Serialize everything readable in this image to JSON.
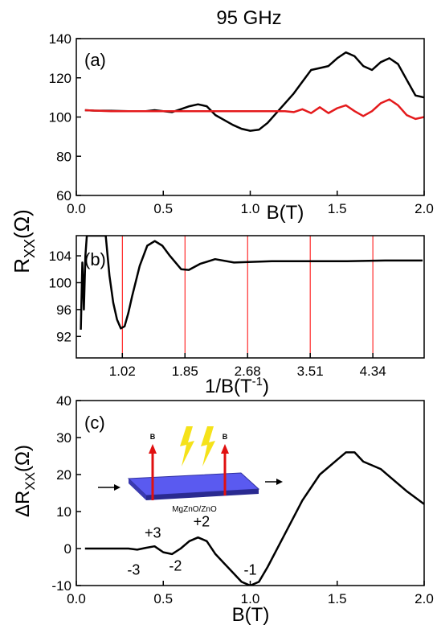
{
  "title": "95 GHz",
  "y_label": {
    "main": "R",
    "sub": "XX",
    "unit": "(Ω)"
  },
  "chart_data": [
    {
      "type": "line",
      "panel_label": "(a)",
      "x_label": "B(T)",
      "xlim": [
        0,
        2
      ],
      "ylim": [
        60,
        140
      ],
      "xticks": [
        {
          "value": 0,
          "label": "0.0"
        },
        0.5,
        {
          "value": 1,
          "label": "1.0"
        },
        1.5,
        {
          "value": 2,
          "label": "2.0"
        }
      ],
      "yticks": [
        60,
        80,
        100,
        120,
        140
      ],
      "x": [
        0.05,
        0.1,
        0.2,
        0.3,
        0.4,
        0.45,
        0.5,
        0.55,
        0.6,
        0.65,
        0.7,
        0.75,
        0.8,
        0.85,
        0.9,
        0.95,
        1.0,
        1.05,
        1.1,
        1.15,
        1.2,
        1.25,
        1.3,
        1.35,
        1.4,
        1.45,
        1.5,
        1.55,
        1.6,
        1.65,
        1.7,
        1.75,
        1.8,
        1.85,
        1.9,
        1.95,
        2.0
      ],
      "series": [
        {
          "color": "#000000",
          "values": [
            103.5,
            103.3,
            103.2,
            103,
            103,
            103.5,
            103,
            102.5,
            104,
            105.5,
            106.5,
            105.5,
            101,
            98.5,
            96,
            94,
            93,
            93.5,
            97,
            102,
            107,
            112,
            118,
            124,
            125,
            126,
            130,
            133,
            131,
            126,
            124,
            128,
            130,
            127,
            119,
            111,
            110
          ]
        },
        {
          "color": "#e41a1c",
          "values": [
            103.5,
            103.3,
            103,
            103,
            103,
            103,
            103,
            103,
            103,
            103,
            103,
            103,
            103,
            103,
            103,
            103,
            103,
            103,
            103,
            103,
            103,
            102.5,
            104,
            102,
            105,
            102,
            104.5,
            106,
            103,
            100.5,
            103,
            107,
            109,
            106,
            101,
            99,
            100
          ]
        }
      ]
    },
    {
      "type": "line",
      "panel_label": "(b)",
      "x_label": {
        "main": "1/B(T",
        "sup": "-1",
        "end": ")"
      },
      "xlim": [
        0.41,
        5.02
      ],
      "ylim": [
        88.8,
        107
      ],
      "xticks": [
        1.02,
        1.85,
        2.68,
        3.51,
        4.34
      ],
      "yticks": [
        92,
        96,
        100,
        104
      ],
      "grid": true,
      "grid_color": "#ff0000",
      "x": [
        0.47,
        0.49,
        0.5,
        0.51,
        0.53,
        0.55,
        0.8,
        0.85,
        0.9,
        0.95,
        1.0,
        1.05,
        1.1,
        1.15,
        1.25,
        1.35,
        1.45,
        1.55,
        1.65,
        1.8,
        1.9,
        2.05,
        2.25,
        2.5,
        3.0,
        3.5,
        4.0,
        4.5,
        5.0
      ],
      "series": [
        {
          "color": "#000000",
          "values": [
            93,
            103,
            100,
            96,
            104,
            107,
            107,
            101,
            97,
            94.5,
            93.2,
            93.5,
            95.5,
            98,
            102.5,
            105.5,
            106.2,
            105.5,
            104,
            102,
            101.9,
            102.8,
            103.5,
            103,
            103.2,
            103.2,
            103.2,
            103.3,
            103.3
          ]
        }
      ]
    },
    {
      "type": "line",
      "panel_label": "(c)",
      "x_label": "B(T)",
      "y_label": {
        "main": "ΔR",
        "sub": "XX",
        "unit": "(Ω)"
      },
      "xlim": [
        0,
        2
      ],
      "ylim": [
        -10,
        40
      ],
      "xticks": [
        {
          "value": 0,
          "label": "0.0"
        },
        0.5,
        {
          "value": 1,
          "label": "1.0"
        },
        1.5,
        {
          "value": 2,
          "label": "2.0"
        }
      ],
      "yticks": [
        -10,
        0,
        10,
        20,
        30,
        40
      ],
      "x": [
        0.05,
        0.1,
        0.2,
        0.3,
        0.35,
        0.4,
        0.45,
        0.5,
        0.55,
        0.6,
        0.65,
        0.7,
        0.75,
        0.8,
        0.85,
        0.9,
        0.95,
        1.0,
        1.05,
        1.1,
        1.2,
        1.3,
        1.4,
        1.5,
        1.55,
        1.6,
        1.65,
        1.7,
        1.75,
        1.8,
        1.9,
        2.0
      ],
      "series": [
        {
          "color": "#000000",
          "values": [
            0,
            0,
            0,
            0,
            -0.3,
            0.2,
            0.6,
            -1,
            -1.5,
            0,
            2,
            3,
            2,
            -1.5,
            -4,
            -6.5,
            -9,
            -10,
            -9,
            -5,
            4,
            13,
            20,
            24,
            26,
            26,
            23.5,
            22.5,
            21.5,
            19.5,
            15.5,
            12
          ]
        }
      ],
      "annotations": [
        "-3",
        "+3",
        "-2",
        "+2",
        "-1"
      ],
      "inset": {
        "field_labels": [
          "B",
          "B"
        ],
        "sample": "MgZnO/ZnO"
      }
    }
  ]
}
